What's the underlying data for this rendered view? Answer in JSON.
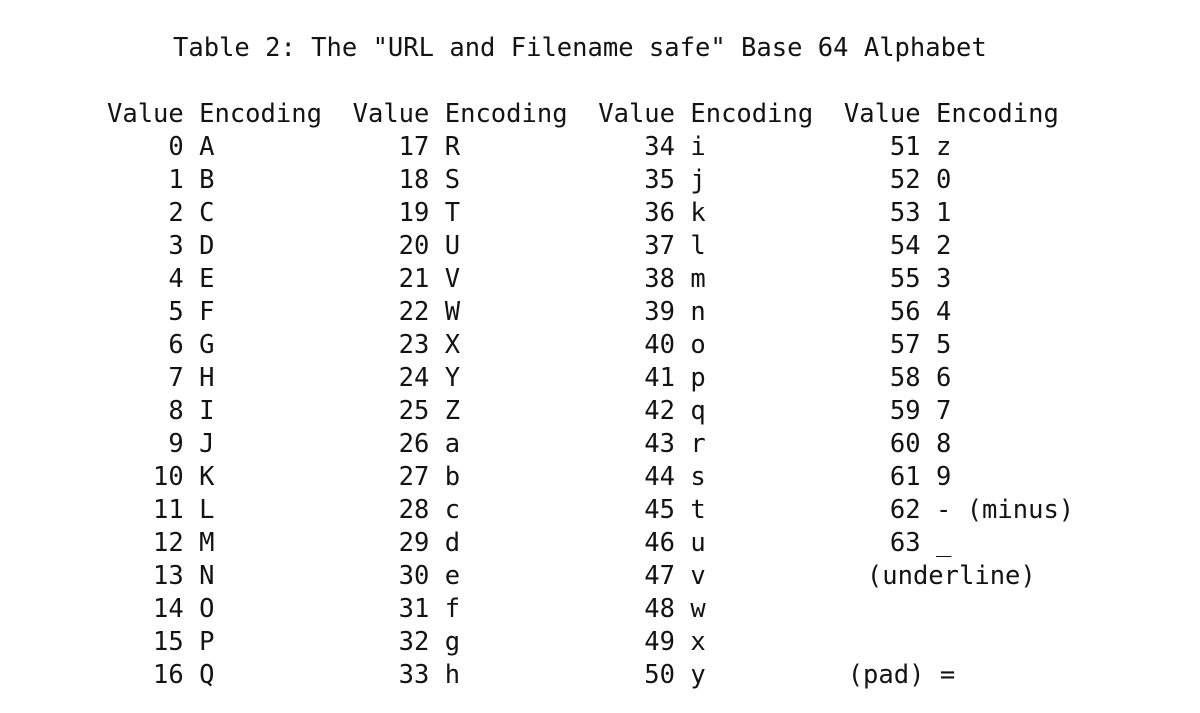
{
  "page": {
    "background_color": "#ffffff",
    "text_color": "#131313"
  },
  "title": "Table 2: The \"URL and Filename safe\" Base 64 Alphabet",
  "table": {
    "value_header": "Value",
    "encoding_header": "Encoding",
    "columns": [
      {
        "rows": [
          {
            "value": "0",
            "encoding": "A"
          },
          {
            "value": "1",
            "encoding": "B"
          },
          {
            "value": "2",
            "encoding": "C"
          },
          {
            "value": "3",
            "encoding": "D"
          },
          {
            "value": "4",
            "encoding": "E"
          },
          {
            "value": "5",
            "encoding": "F"
          },
          {
            "value": "6",
            "encoding": "G"
          },
          {
            "value": "7",
            "encoding": "H"
          },
          {
            "value": "8",
            "encoding": "I"
          },
          {
            "value": "9",
            "encoding": "J"
          },
          {
            "value": "10",
            "encoding": "K"
          },
          {
            "value": "11",
            "encoding": "L"
          },
          {
            "value": "12",
            "encoding": "M"
          },
          {
            "value": "13",
            "encoding": "N"
          },
          {
            "value": "14",
            "encoding": "O"
          },
          {
            "value": "15",
            "encoding": "P"
          },
          {
            "value": "16",
            "encoding": "Q"
          }
        ]
      },
      {
        "rows": [
          {
            "value": "17",
            "encoding": "R"
          },
          {
            "value": "18",
            "encoding": "S"
          },
          {
            "value": "19",
            "encoding": "T"
          },
          {
            "value": "20",
            "encoding": "U"
          },
          {
            "value": "21",
            "encoding": "V"
          },
          {
            "value": "22",
            "encoding": "W"
          },
          {
            "value": "23",
            "encoding": "X"
          },
          {
            "value": "24",
            "encoding": "Y"
          },
          {
            "value": "25",
            "encoding": "Z"
          },
          {
            "value": "26",
            "encoding": "a"
          },
          {
            "value": "27",
            "encoding": "b"
          },
          {
            "value": "28",
            "encoding": "c"
          },
          {
            "value": "29",
            "encoding": "d"
          },
          {
            "value": "30",
            "encoding": "e"
          },
          {
            "value": "31",
            "encoding": "f"
          },
          {
            "value": "32",
            "encoding": "g"
          },
          {
            "value": "33",
            "encoding": "h"
          }
        ]
      },
      {
        "rows": [
          {
            "value": "34",
            "encoding": "i"
          },
          {
            "value": "35",
            "encoding": "j"
          },
          {
            "value": "36",
            "encoding": "k"
          },
          {
            "value": "37",
            "encoding": "l"
          },
          {
            "value": "38",
            "encoding": "m"
          },
          {
            "value": "39",
            "encoding": "n"
          },
          {
            "value": "40",
            "encoding": "o"
          },
          {
            "value": "41",
            "encoding": "p"
          },
          {
            "value": "42",
            "encoding": "q"
          },
          {
            "value": "43",
            "encoding": "r"
          },
          {
            "value": "44",
            "encoding": "s"
          },
          {
            "value": "45",
            "encoding": "t"
          },
          {
            "value": "46",
            "encoding": "u"
          },
          {
            "value": "47",
            "encoding": "v"
          },
          {
            "value": "48",
            "encoding": "w"
          },
          {
            "value": "49",
            "encoding": "x"
          },
          {
            "value": "50",
            "encoding": "y"
          }
        ]
      },
      {
        "rows": [
          {
            "value": "51",
            "encoding": "z"
          },
          {
            "value": "52",
            "encoding": "0"
          },
          {
            "value": "53",
            "encoding": "1"
          },
          {
            "value": "54",
            "encoding": "2"
          },
          {
            "value": "55",
            "encoding": "3"
          },
          {
            "value": "56",
            "encoding": "4"
          },
          {
            "value": "57",
            "encoding": "5"
          },
          {
            "value": "58",
            "encoding": "6"
          },
          {
            "value": "59",
            "encoding": "7"
          },
          {
            "value": "60",
            "encoding": "8"
          },
          {
            "value": "61",
            "encoding": "9"
          },
          {
            "value": "62",
            "encoding": "- (minus)"
          },
          {
            "value": "63",
            "encoding": "_"
          },
          {
            "note": "(underline)",
            "indent_ch": 1.5,
            "name": "underline-note"
          },
          {
            "value": "",
            "encoding": ""
          },
          {
            "value": "",
            "encoding": ""
          },
          {
            "note": "(pad) =",
            "indent_ch": 0.25,
            "name": "pad-note"
          }
        ]
      }
    ]
  }
}
